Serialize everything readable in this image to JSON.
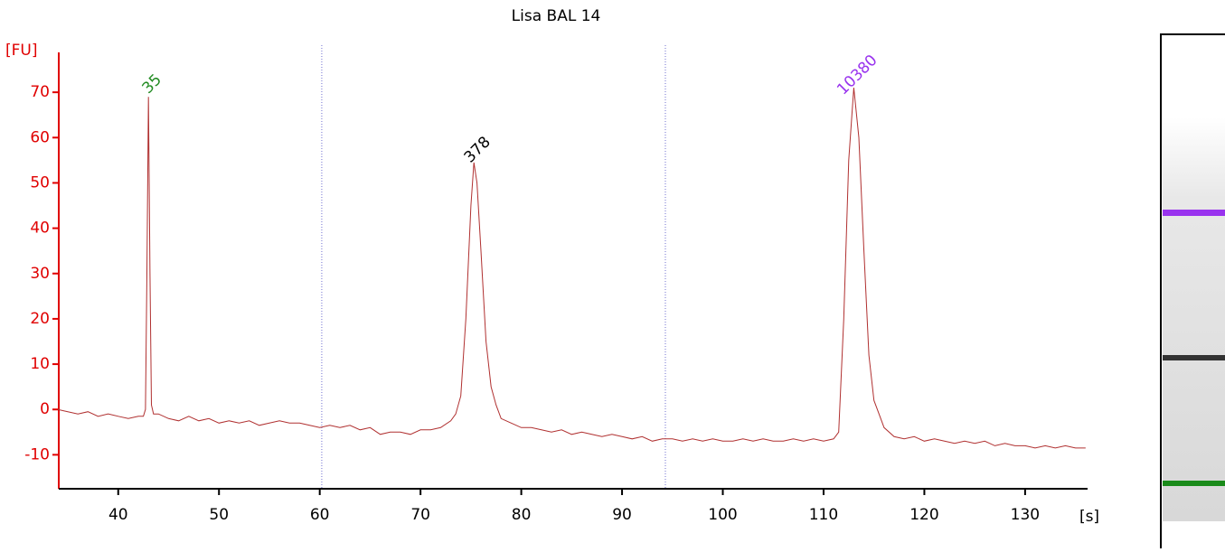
{
  "chart_data": {
    "type": "line",
    "title": "Lisa BAL 14",
    "x_label": "[s]",
    "y_label": "[FU]",
    "xlim": [
      34.1,
      136.2
    ],
    "ylim": [
      -17.5,
      78.8
    ],
    "xticks": [
      40,
      50,
      60,
      70,
      80,
      90,
      100,
      110,
      120,
      130
    ],
    "yticks": [
      -10,
      0,
      10,
      20,
      30,
      40,
      50,
      60,
      70
    ],
    "color": "#b03030",
    "axis_color": "#e00000",
    "vlines": [
      60.2,
      94.3
    ],
    "vline_color": "#7070d0",
    "x": [
      34,
      35,
      36,
      37,
      38,
      39,
      40,
      41,
      42,
      42.5,
      42.7,
      42.85,
      43,
      43.15,
      43.3,
      43.5,
      44,
      45,
      46,
      47,
      48,
      49,
      50,
      51,
      52,
      53,
      54,
      55,
      56,
      57,
      58,
      59,
      60,
      61,
      62,
      63,
      64,
      65,
      66,
      67,
      68,
      69,
      70,
      71,
      72,
      73,
      73.5,
      74,
      74.5,
      75,
      75.3,
      75.6,
      76,
      76.5,
      77,
      77.5,
      78,
      79,
      80,
      81,
      82,
      83,
      84,
      85,
      86,
      87,
      88,
      89,
      90,
      91,
      92,
      93,
      94,
      95,
      96,
      97,
      98,
      99,
      100,
      101,
      102,
      103,
      104,
      105,
      106,
      107,
      108,
      109,
      110,
      111,
      111.5,
      112,
      112.5,
      113,
      113.5,
      114,
      114.5,
      115,
      115.5,
      116,
      117,
      118,
      119,
      120,
      121,
      122,
      123,
      124,
      125,
      126,
      127,
      128,
      129,
      130,
      131,
      132,
      133,
      134,
      135,
      136
    ],
    "values": [
      0,
      -0.5,
      -1,
      -0.5,
      -1.5,
      -1,
      -1.5,
      -2,
      -1.5,
      -1.5,
      0,
      30,
      69,
      30,
      1,
      -1,
      -1,
      -2,
      -2.5,
      -1.5,
      -2.5,
      -2,
      -3,
      -2.5,
      -3,
      -2.5,
      -3.5,
      -3,
      -2.5,
      -3,
      -3,
      -3.5,
      -4,
      -3.5,
      -4,
      -3.5,
      -4.5,
      -4,
      -5.5,
      -5,
      -5,
      -5.5,
      -4.5,
      -4.5,
      -4,
      -2.5,
      -1,
      3,
      20,
      45,
      54.5,
      50,
      35,
      15,
      5,
      1,
      -2,
      -3,
      -4,
      -4,
      -4.5,
      -5,
      -4.5,
      -5.5,
      -5,
      -5.5,
      -6,
      -5.5,
      -6,
      -6.5,
      -6,
      -7,
      -6.5,
      -6.5,
      -7,
      -6.5,
      -7,
      -6.5,
      -7,
      -7,
      -6.5,
      -7,
      -6.5,
      -7,
      -7,
      -6.5,
      -7,
      -6.5,
      -7,
      -6.5,
      -5,
      20,
      55,
      71,
      60,
      35,
      12,
      2,
      -1,
      -4,
      -6,
      -6.5,
      -6,
      -7,
      -6.5,
      -7,
      -7.5,
      -7,
      -7.5,
      -7,
      -8,
      -7.5,
      -8,
      -8,
      -8.5,
      -8,
      -8.5,
      -8,
      -8.5,
      -8.5
    ],
    "annotations": [
      {
        "x": 43.0,
        "y": 69,
        "text": "35",
        "color": "#228b22"
      },
      {
        "x": 75.3,
        "y": 54.5,
        "text": "378",
        "color": "#000000"
      },
      {
        "x": 113.0,
        "y": 71,
        "text": "10380",
        "color": "#9933ee"
      }
    ]
  }
}
